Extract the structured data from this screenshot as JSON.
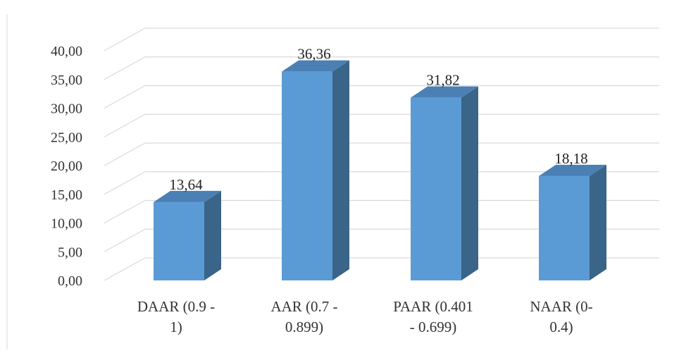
{
  "chart_data": {
    "type": "bar",
    "style": "3d-column",
    "categories": [
      "DAAR (0.9 - 1)",
      "AAR (0.7 - 0.899)",
      "PAAR (0.401 - 0.699)",
      "NAAR (0- 0.4)"
    ],
    "category_lines": [
      [
        "DAAR (0.9 -",
        "1)"
      ],
      [
        "AAR (0.7 -",
        "0.899)"
      ],
      [
        "PAAR (0.401",
        "- 0.699)"
      ],
      [
        "NAAR (0-",
        "0.4)"
      ]
    ],
    "values": [
      13.64,
      36.36,
      31.82,
      18.18
    ],
    "data_labels": [
      "13,64",
      "36,36",
      "31,82",
      "18,18"
    ],
    "ylim": [
      0,
      40
    ],
    "yticks": [
      0,
      5,
      10,
      15,
      20,
      25,
      30,
      35,
      40
    ],
    "ytick_labels": [
      "0,00",
      "5,00",
      "10,00",
      "15,00",
      "20,00",
      "25,00",
      "30,00",
      "35,00",
      "40,00"
    ],
    "grid": true,
    "legend": "none",
    "title": "",
    "xlabel": "",
    "ylabel": "",
    "colors": {
      "bar_front": "#5b9bd5",
      "bar_side": "#3a6488",
      "bar_top": "#4a80b4",
      "grid": "#d9d9d9"
    }
  }
}
